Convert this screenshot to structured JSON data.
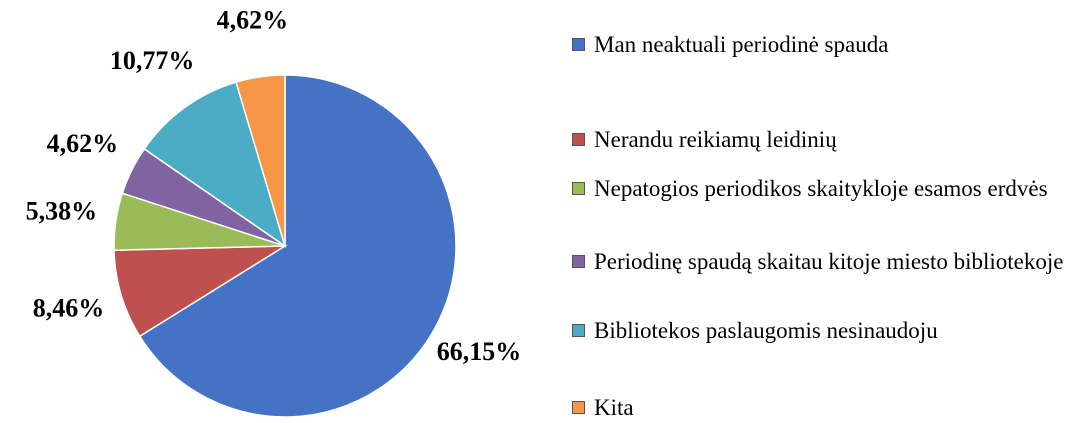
{
  "chart_data": {
    "type": "pie",
    "categories": [
      "Man neaktuali periodinė spauda",
      "Nerandu reikiamų leidinių",
      "Nepatogios periodikos skaitykloje esamos erdvės",
      "Periodinę spaudą skaitau kitoje miesto bibliotekoje",
      "Bibliotekos paslaugomis nesinaudoju",
      "Kita"
    ],
    "values": [
      66.15,
      8.46,
      5.38,
      4.62,
      10.77,
      4.62
    ],
    "value_labels": [
      "66,15%",
      "8,46%",
      "5,38%",
      "4,62%",
      "10,77%",
      "4,62%"
    ],
    "colors": [
      "#4472c4",
      "#c0504d",
      "#9bbb59",
      "#8064a2",
      "#4bacc6",
      "#f79646"
    ],
    "legend": "right"
  }
}
